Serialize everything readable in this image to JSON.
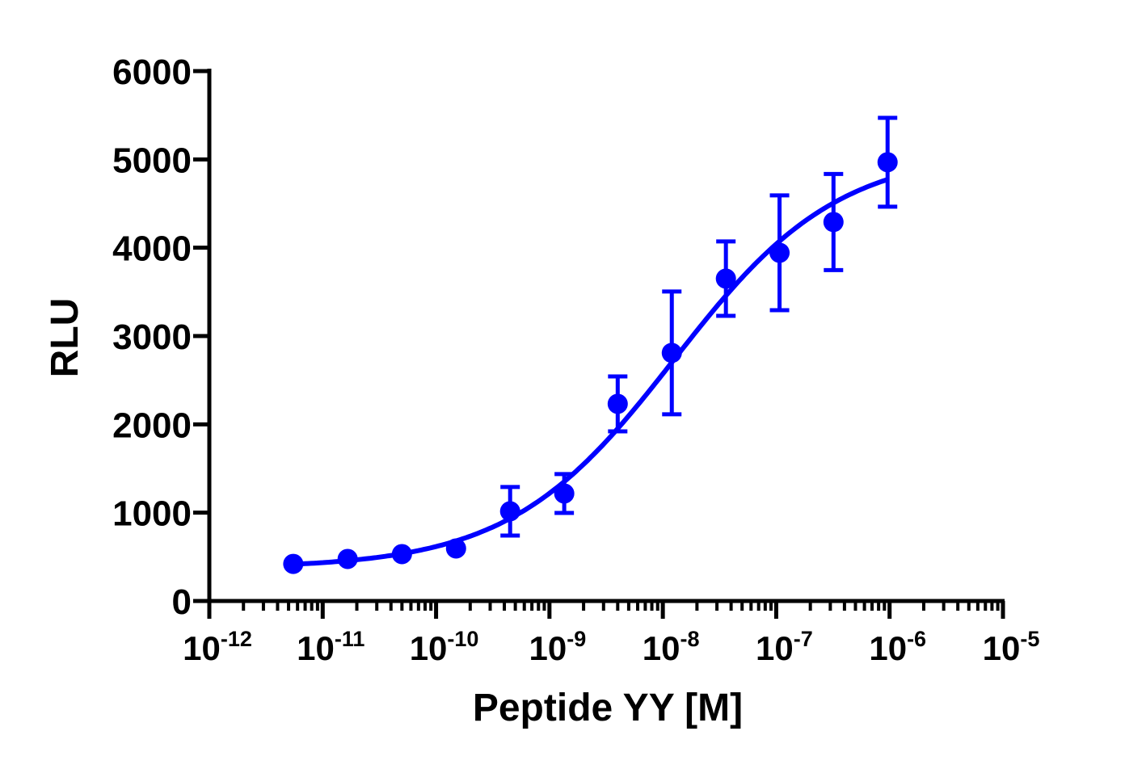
{
  "chart_data": {
    "type": "scatter",
    "xlabel": "Peptide YY [M]",
    "ylabel": "RLU",
    "xscale": "log",
    "xlim": [
      1e-12,
      1e-05
    ],
    "ylim": [
      0,
      6000
    ],
    "x_tick_labels": [
      {
        "base": "10",
        "exp": "-12"
      },
      {
        "base": "10",
        "exp": "-11"
      },
      {
        "base": "10",
        "exp": "-10"
      },
      {
        "base": "10",
        "exp": "-9"
      },
      {
        "base": "10",
        "exp": "-8"
      },
      {
        "base": "10",
        "exp": "-7"
      },
      {
        "base": "10",
        "exp": "-6"
      },
      {
        "base": "10",
        "exp": "-5"
      }
    ],
    "y_tick_labels": [
      "0",
      "1000",
      "2000",
      "3000",
      "4000",
      "5000",
      "6000"
    ],
    "grid": false,
    "color": "#0000FF",
    "series": [
      {
        "x": [
          5.5e-12,
          1.66e-11,
          5e-11,
          1.5e-10,
          4.5e-10,
          1.35e-09,
          4e-09,
          1.2e-08,
          3.6e-08,
          1.07e-07,
          3.2e-07,
          9.6e-07
        ],
        "y": [
          420,
          476,
          531,
          595,
          1016,
          1217,
          2232,
          2809,
          3650,
          3943,
          4291,
          4968
        ],
        "error": [
          0,
          0,
          0,
          0,
          275,
          220,
          311,
          695,
          421,
          650,
          544,
          503
        ]
      }
    ],
    "fit": {
      "model": "sigmoidal dose-response",
      "bottom": 370,
      "top": 5100,
      "logEC50": -7.9,
      "hill": 0.6
    }
  }
}
